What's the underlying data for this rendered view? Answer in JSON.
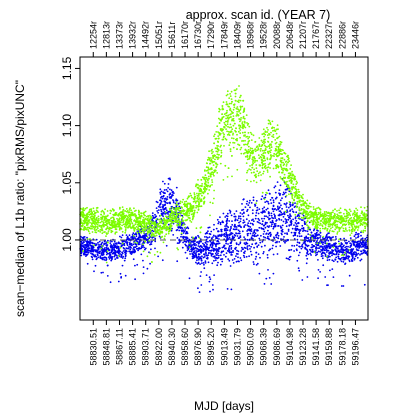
{
  "chart_data": {
    "type": "scatter",
    "title": "approx. scan id. (YEAR 7)",
    "xlabel": "MJD [days]",
    "ylabel": "scan−median of L1b ratio: \"pixRMS/pixUNC\"",
    "xlim": [
      58812,
      59214
    ],
    "ylim": [
      0.93,
      1.16
    ],
    "grid": false,
    "legend": "none",
    "reference_line": {
      "y": 1.0,
      "style": "dashed"
    },
    "colors": {
      "series_a": "#0000ee",
      "series_b": "#7cfc00",
      "reference": "#555555"
    },
    "y_ticks": [
      "1.00",
      "1.05",
      "1.10",
      "1.15"
    ],
    "y_tick_values": [
      1.0,
      1.05,
      1.1,
      1.15
    ],
    "x_ticks": [
      "58830.51",
      "58848.81",
      "58867.11",
      "58885.41",
      "58903.71",
      "58922.00",
      "58940.30",
      "58958.60",
      "58976.90",
      "58995.20",
      "59013.49",
      "59031.79",
      "59050.09",
      "59068.39",
      "59086.69",
      "59104.98",
      "59123.28",
      "59141.58",
      "59159.88",
      "59178.18",
      "59196.47"
    ],
    "top_ticks": [
      "12254r",
      "12813r",
      "13373r",
      "13932r",
      "14492r",
      "15051r",
      "15611r",
      "16170r",
      "16730r",
      "17290r",
      "17849r",
      "18409r",
      "18968r",
      "19528r",
      "20088r",
      "20648r",
      "21207r",
      "21767r",
      "22327r",
      "22886r",
      "23446r"
    ],
    "series": [
      {
        "color": "blue",
        "envelope_x": [
          58813,
          58830,
          58850,
          58870,
          58890,
          58910,
          58925,
          58935,
          58945,
          58955,
          58965,
          58975,
          58985,
          59000,
          59010,
          59020,
          59030,
          59040,
          59050,
          59060,
          59070,
          59080,
          59090,
          59095,
          59100,
          59110,
          59120,
          59130,
          59140,
          59150,
          59160,
          59170,
          59180,
          59190,
          59200,
          59213
        ],
        "upper": [
          1.005,
          1.002,
          1.0,
          1.005,
          1.01,
          1.02,
          1.05,
          1.058,
          1.052,
          1.025,
          1.01,
          1.005,
          1.01,
          1.02,
          1.025,
          1.03,
          1.035,
          1.038,
          1.04,
          1.042,
          1.045,
          1.05,
          1.056,
          1.058,
          1.055,
          1.045,
          1.03,
          1.02,
          1.012,
          1.01,
          1.008,
          1.005,
          1.002,
          1.005,
          1.01,
          1.005
        ],
        "lower": [
          0.985,
          0.982,
          0.98,
          0.982,
          0.985,
          0.99,
          1.0,
          1.005,
          1.0,
          0.99,
          0.985,
          0.975,
          0.972,
          0.975,
          0.975,
          0.975,
          0.975,
          0.975,
          0.975,
          0.975,
          0.978,
          0.98,
          0.985,
          0.985,
          0.985,
          0.985,
          0.982,
          0.98,
          0.98,
          0.98,
          0.98,
          0.978,
          0.978,
          0.978,
          0.98,
          0.98
        ]
      },
      {
        "color": "green",
        "envelope_x": [
          58813,
          58830,
          58850,
          58870,
          58890,
          58905,
          58920,
          58930,
          58940,
          58950,
          58960,
          58970,
          58980,
          58990,
          59000,
          59010,
          59020,
          59030,
          59040,
          59050,
          59060,
          59070,
          59080,
          59090,
          59100,
          59110,
          59120,
          59130,
          59140,
          59150,
          59160,
          59170,
          59180,
          59190,
          59200,
          59213
        ],
        "upper": [
          1.03,
          1.03,
          1.028,
          1.03,
          1.03,
          1.025,
          1.02,
          1.025,
          1.03,
          1.035,
          1.038,
          1.045,
          1.06,
          1.075,
          1.1,
          1.125,
          1.14,
          1.145,
          1.13,
          1.1,
          1.09,
          1.1,
          1.115,
          1.1,
          1.08,
          1.065,
          1.045,
          1.035,
          1.03,
          1.03,
          1.028,
          1.03,
          1.03,
          1.028,
          1.03,
          1.03
        ],
        "lower": [
          1.005,
          1.005,
          1.0,
          1.005,
          1.005,
          1.0,
          0.998,
          1.0,
          1.005,
          1.01,
          1.01,
          1.015,
          1.022,
          1.035,
          1.05,
          1.065,
          1.075,
          1.075,
          1.065,
          1.05,
          1.048,
          1.052,
          1.06,
          1.05,
          1.04,
          1.03,
          1.018,
          1.01,
          1.005,
          1.005,
          1.005,
          1.005,
          1.005,
          1.005,
          1.005,
          1.005
        ]
      }
    ]
  }
}
